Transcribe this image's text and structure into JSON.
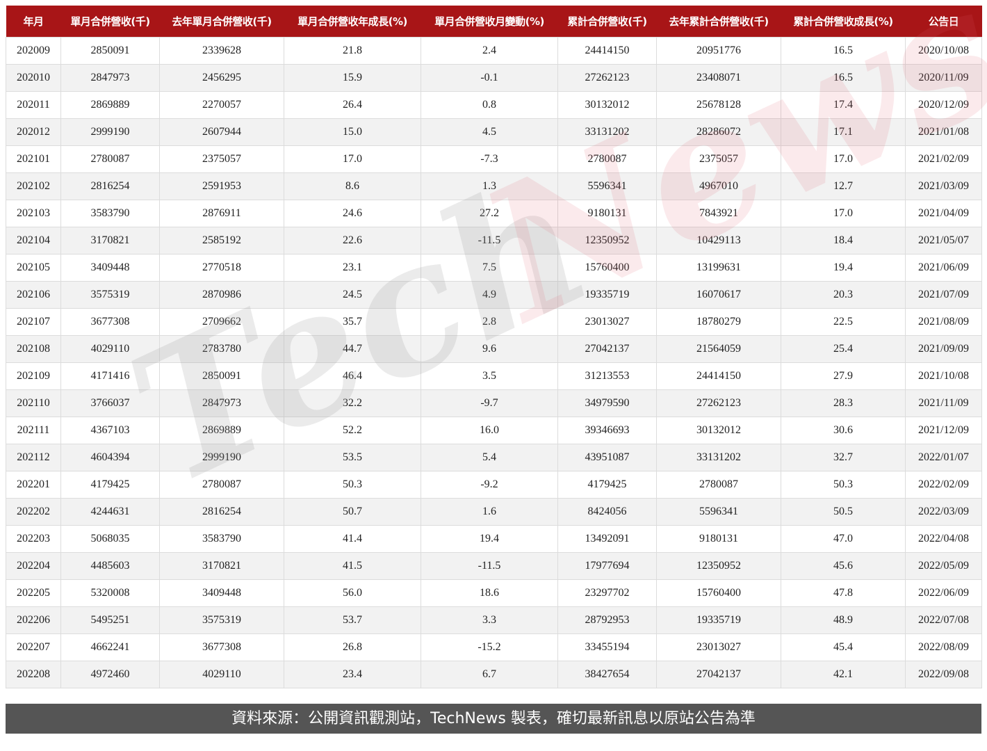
{
  "table": {
    "headers": [
      "年月",
      "單月合併營收(千)",
      "去年單月合併營收(千)",
      "單月合併營收年成長(%)",
      "單月合併營收月變動(%)",
      "累計合併營收(千)",
      "去年累計合併營收(千)",
      "累計合併營收成長(%)",
      "公告日"
    ],
    "rows": [
      [
        "202009",
        "2850091",
        "2339628",
        "21.8",
        "2.4",
        "24414150",
        "20951776",
        "16.5",
        "2020/10/08"
      ],
      [
        "202010",
        "2847973",
        "2456295",
        "15.9",
        "-0.1",
        "27262123",
        "23408071",
        "16.5",
        "2020/11/09"
      ],
      [
        "202011",
        "2869889",
        "2270057",
        "26.4",
        "0.8",
        "30132012",
        "25678128",
        "17.4",
        "2020/12/09"
      ],
      [
        "202012",
        "2999190",
        "2607944",
        "15.0",
        "4.5",
        "33131202",
        "28286072",
        "17.1",
        "2021/01/08"
      ],
      [
        "202101",
        "2780087",
        "2375057",
        "17.0",
        "-7.3",
        "2780087",
        "2375057",
        "17.0",
        "2021/02/09"
      ],
      [
        "202102",
        "2816254",
        "2591953",
        "8.6",
        "1.3",
        "5596341",
        "4967010",
        "12.7",
        "2021/03/09"
      ],
      [
        "202103",
        "3583790",
        "2876911",
        "24.6",
        "27.2",
        "9180131",
        "7843921",
        "17.0",
        "2021/04/09"
      ],
      [
        "202104",
        "3170821",
        "2585192",
        "22.6",
        "-11.5",
        "12350952",
        "10429113",
        "18.4",
        "2021/05/07"
      ],
      [
        "202105",
        "3409448",
        "2770518",
        "23.1",
        "7.5",
        "15760400",
        "13199631",
        "19.4",
        "2021/06/09"
      ],
      [
        "202106",
        "3575319",
        "2870986",
        "24.5",
        "4.9",
        "19335719",
        "16070617",
        "20.3",
        "2021/07/09"
      ],
      [
        "202107",
        "3677308",
        "2709662",
        "35.7",
        "2.8",
        "23013027",
        "18780279",
        "22.5",
        "2021/08/09"
      ],
      [
        "202108",
        "4029110",
        "2783780",
        "44.7",
        "9.6",
        "27042137",
        "21564059",
        "25.4",
        "2021/09/09"
      ],
      [
        "202109",
        "4171416",
        "2850091",
        "46.4",
        "3.5",
        "31213553",
        "24414150",
        "27.9",
        "2021/10/08"
      ],
      [
        "202110",
        "3766037",
        "2847973",
        "32.2",
        "-9.7",
        "34979590",
        "27262123",
        "28.3",
        "2021/11/09"
      ],
      [
        "202111",
        "4367103",
        "2869889",
        "52.2",
        "16.0",
        "39346693",
        "30132012",
        "30.6",
        "2021/12/09"
      ],
      [
        "202112",
        "4604394",
        "2999190",
        "53.5",
        "5.4",
        "43951087",
        "33131202",
        "32.7",
        "2022/01/07"
      ],
      [
        "202201",
        "4179425",
        "2780087",
        "50.3",
        "-9.2",
        "4179425",
        "2780087",
        "50.3",
        "2022/02/09"
      ],
      [
        "202202",
        "4244631",
        "2816254",
        "50.7",
        "1.6",
        "8424056",
        "5596341",
        "50.5",
        "2022/03/09"
      ],
      [
        "202203",
        "5068035",
        "3583790",
        "41.4",
        "19.4",
        "13492091",
        "9180131",
        "47.0",
        "2022/04/08"
      ],
      [
        "202204",
        "4485603",
        "3170821",
        "41.5",
        "-11.5",
        "17977694",
        "12350952",
        "45.6",
        "2022/05/09"
      ],
      [
        "202205",
        "5320008",
        "3409448",
        "56.0",
        "18.6",
        "23297702",
        "15760400",
        "47.8",
        "2022/06/09"
      ],
      [
        "202206",
        "5495251",
        "3575319",
        "53.7",
        "3.3",
        "28792953",
        "19335719",
        "48.9",
        "2022/07/08"
      ],
      [
        "202207",
        "4662241",
        "3677308",
        "26.8",
        "-15.2",
        "33455194",
        "23013027",
        "45.4",
        "2022/08/09"
      ],
      [
        "202208",
        "4972460",
        "4029110",
        "23.4",
        "6.7",
        "38427654",
        "27042137",
        "42.1",
        "2022/09/08"
      ]
    ]
  },
  "watermark": {
    "part1": "Tech",
    "part2": "News"
  },
  "footer": {
    "text": "資料來源：公開資訊觀測站，TechNews 製表，確切最新訊息以原站公告為準"
  },
  "colors": {
    "header_bg": "#a81517",
    "footer_bg": "#555555",
    "row_alt": "#f2f2f2"
  }
}
